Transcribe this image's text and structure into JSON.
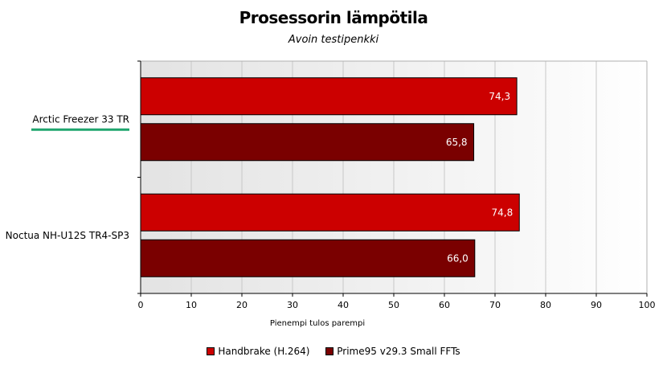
{
  "chart_data": {
    "type": "bar",
    "orientation": "horizontal",
    "title": "Prosessorin lämpötila",
    "subtitle": "Avoin testipenkki",
    "xlabel": "Pienempi tulos parempi",
    "ylabel": "",
    "xlim": [
      0,
      100
    ],
    "x_ticks": [
      "0",
      "10",
      "20",
      "30",
      "40",
      "50",
      "60",
      "70",
      "80",
      "90",
      "100"
    ],
    "categories": [
      "Arctic Freezer 33 TR",
      "Noctua NH-U12S TR4-SP3"
    ],
    "highlighted_category": "Arctic Freezer 33 TR",
    "highlight_color": "#1fa56e",
    "series": [
      {
        "name": "Handbrake (H.264)",
        "color": "#cc0000",
        "values": [
          74.3,
          74.8
        ],
        "labels": [
          "74,3",
          "74,8"
        ]
      },
      {
        "name": "Prime95 v29.3 Small FFTs",
        "color": "#7a0000",
        "values": [
          65.8,
          66.0
        ],
        "labels": [
          "65,8",
          "66,0"
        ]
      }
    ],
    "grid": true,
    "legend_position": "bottom"
  }
}
